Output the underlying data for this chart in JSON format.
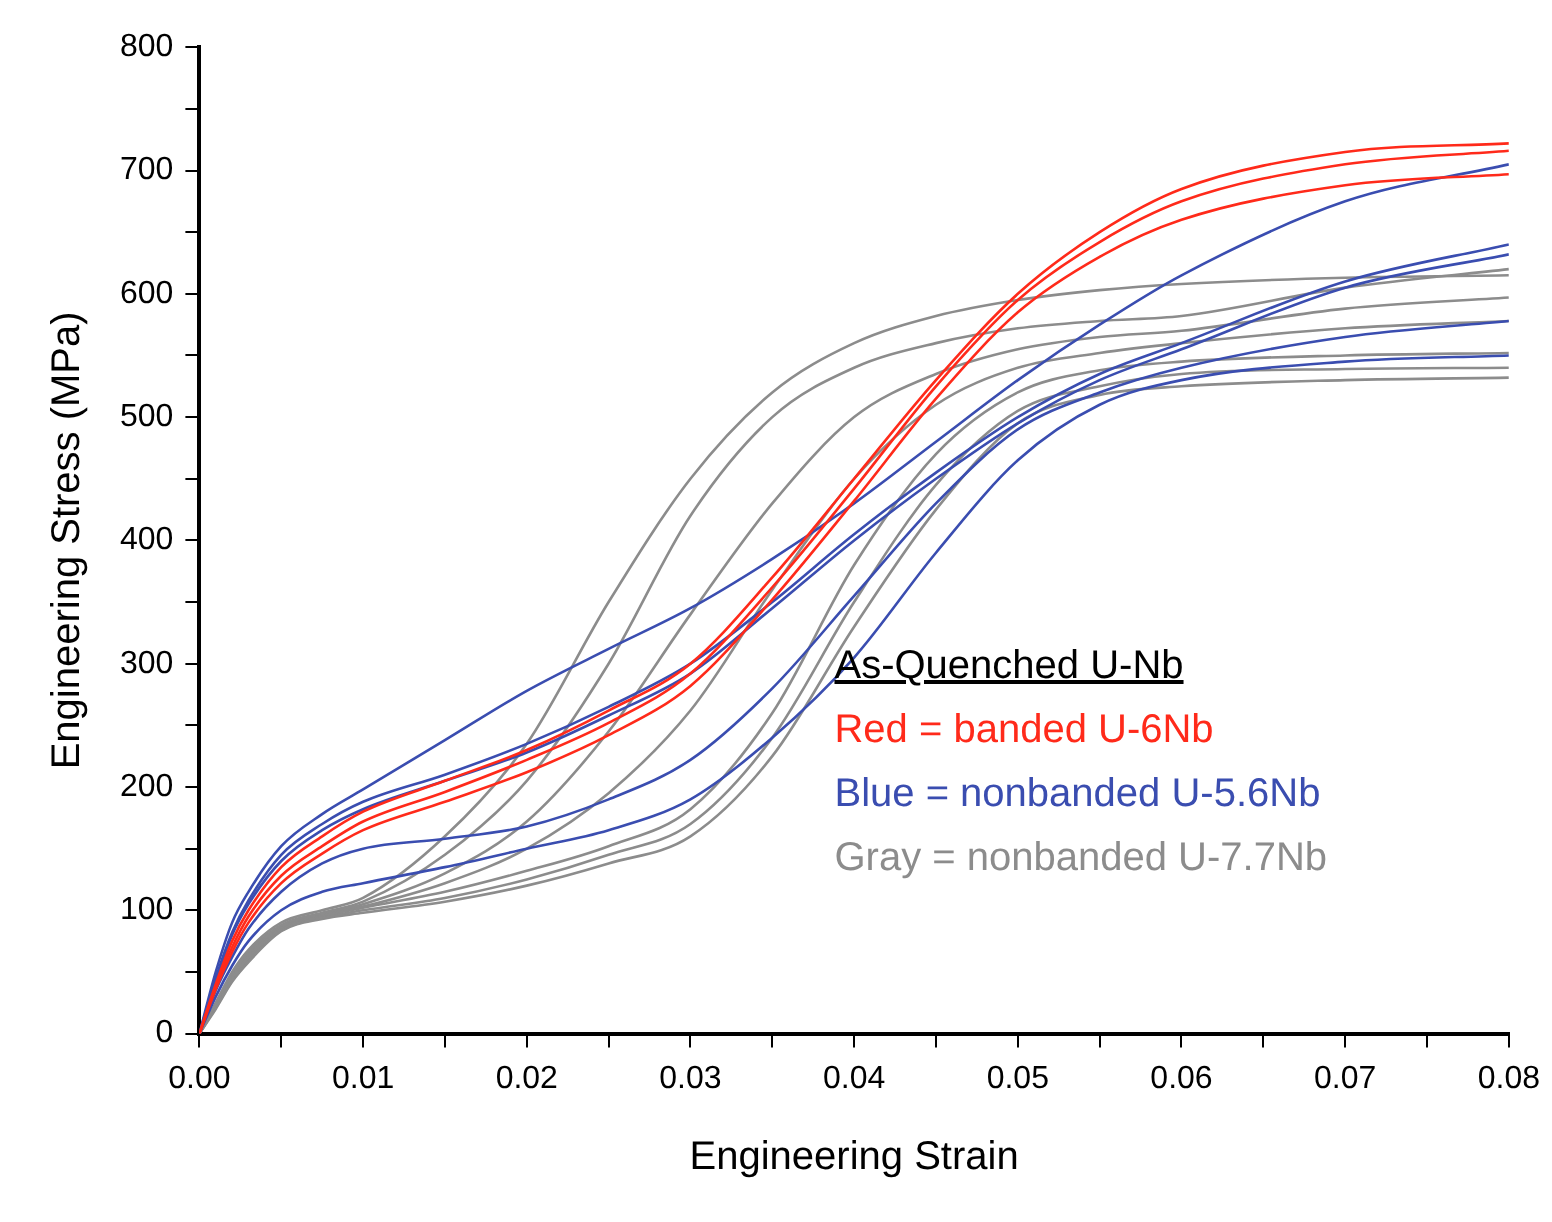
{
  "chart_data": {
    "type": "line",
    "xlabel": "Engineering Strain",
    "ylabel": "Engineering Stress (MPa)",
    "x": [
      0,
      0.001,
      0.002,
      0.003,
      0.005,
      0.0075,
      0.01,
      0.015,
      0.02,
      0.025,
      0.03,
      0.035,
      0.04,
      0.045,
      0.05,
      0.055,
      0.06,
      0.07,
      0.08
    ],
    "series": [
      {
        "color": "#ff2a1a",
        "values": [
          0,
          40,
          75,
          100,
          135,
          160,
          180,
          205,
          230,
          262,
          300,
          370,
          450,
          530,
          600,
          650,
          685,
          715,
          722
        ]
      },
      {
        "color": "#ff2a1a",
        "values": [
          0,
          38,
          70,
          95,
          128,
          152,
          172,
          196,
          222,
          252,
          292,
          362,
          442,
          525,
          595,
          642,
          675,
          705,
          716
        ]
      },
      {
        "color": "#ff2a1a",
        "values": [
          0,
          36,
          66,
          90,
          122,
          146,
          165,
          188,
          212,
          242,
          282,
          352,
          432,
          515,
          585,
          630,
          660,
          688,
          697
        ]
      },
      {
        "color": "#3a4db0",
        "values": [
          0,
          50,
          90,
          115,
          152,
          178,
          198,
          238,
          278,
          312,
          345,
          385,
          430,
          480,
          530,
          575,
          615,
          675,
          705
        ]
      },
      {
        "color": "#3a4db0",
        "values": [
          0,
          45,
          82,
          108,
          145,
          170,
          188,
          210,
          235,
          265,
          300,
          350,
          405,
          455,
          500,
          535,
          560,
          610,
          640
        ]
      },
      {
        "color": "#3a4db0",
        "values": [
          0,
          43,
          80,
          105,
          140,
          165,
          182,
          205,
          228,
          258,
          292,
          345,
          400,
          450,
          495,
          530,
          555,
          605,
          632
        ]
      },
      {
        "color": "#3a4db0",
        "values": [
          0,
          35,
          62,
          85,
          115,
          138,
          150,
          158,
          168,
          190,
          222,
          280,
          355,
          430,
          490,
          520,
          540,
          565,
          578
        ]
      },
      {
        "color": "#3a4db0",
        "values": [
          0,
          30,
          55,
          75,
          100,
          115,
          122,
          135,
          150,
          165,
          190,
          240,
          305,
          390,
          465,
          510,
          530,
          545,
          550
        ]
      },
      {
        "color": "#8c8c8c",
        "values": [
          0,
          25,
          50,
          68,
          90,
          100,
          110,
          160,
          235,
          350,
          450,
          520,
          560,
          582,
          595,
          603,
          608,
          613,
          615
        ]
      },
      {
        "color": "#8c8c8c",
        "values": [
          0,
          24,
          48,
          66,
          88,
          98,
          107,
          145,
          205,
          300,
          420,
          500,
          540,
          560,
          572,
          578,
          582,
          605,
          620
        ]
      },
      {
        "color": "#8c8c8c",
        "values": [
          0,
          23,
          46,
          64,
          87,
          97,
          105,
          130,
          172,
          245,
          340,
          430,
          500,
          535,
          555,
          565,
          570,
          588,
          597
        ]
      },
      {
        "color": "#8c8c8c",
        "values": [
          0,
          22,
          45,
          62,
          86,
          96,
          103,
          122,
          150,
          195,
          262,
          360,
          450,
          510,
          540,
          552,
          560,
          572,
          578
        ]
      },
      {
        "color": "#8c8c8c",
        "values": [
          0,
          22,
          44,
          62,
          85,
          95,
          102,
          115,
          132,
          152,
          182,
          260,
          380,
          470,
          520,
          538,
          545,
          550,
          552
        ]
      },
      {
        "color": "#8c8c8c",
        "values": [
          0,
          21,
          43,
          60,
          84,
          94,
          100,
          110,
          125,
          145,
          170,
          240,
          350,
          445,
          505,
          525,
          535,
          539,
          540
        ]
      },
      {
        "color": "#8c8c8c",
        "values": [
          0,
          20,
          42,
          58,
          83,
          93,
          98,
          107,
          120,
          138,
          160,
          225,
          330,
          425,
          495,
          518,
          525,
          530,
          532
        ]
      }
    ],
    "xlim": [
      0,
      0.08
    ],
    "xticks": [
      {
        "value": 0,
        "label": "0.00"
      },
      {
        "value": 0.005,
        "label": null
      },
      {
        "value": 0.01,
        "label": "0.01"
      },
      {
        "value": 0.015,
        "label": null
      },
      {
        "value": 0.02,
        "label": "0.02"
      },
      {
        "value": 0.025,
        "label": null
      },
      {
        "value": 0.03,
        "label": "0.03"
      },
      {
        "value": 0.035,
        "label": null
      },
      {
        "value": 0.04,
        "label": "0.04"
      },
      {
        "value": 0.045,
        "label": null
      },
      {
        "value": 0.05,
        "label": "0.05"
      },
      {
        "value": 0.055,
        "label": null
      },
      {
        "value": 0.06,
        "label": "0.06"
      },
      {
        "value": 0.065,
        "label": null
      },
      {
        "value": 0.07,
        "label": "0.07"
      },
      {
        "value": 0.075,
        "label": null
      },
      {
        "value": 0.08,
        "label": "0.08"
      }
    ],
    "ylim": [
      0,
      800
    ],
    "yticks": [
      0,
      {
        "value": 50,
        "label": null
      },
      100,
      {
        "value": 150,
        "label": null
      },
      200,
      {
        "value": 250,
        "label": null
      },
      300,
      {
        "value": 350,
        "label": null
      },
      400,
      {
        "value": 450,
        "label": null
      },
      500,
      {
        "value": 550,
        "label": null
      },
      600,
      {
        "value": 650,
        "label": null
      },
      700,
      {
        "value": 750,
        "label": null
      },
      800
    ],
    "grid": false,
    "legend": false,
    "marker": "none",
    "line_style": "solid",
    "annotations": [
      "As-Quenched U-Nb",
      "Red = banded U-6Nb",
      "Blue = nonbanded U-5.6Nb",
      "Gray = nonbanded U-7.7Nb"
    ]
  }
}
